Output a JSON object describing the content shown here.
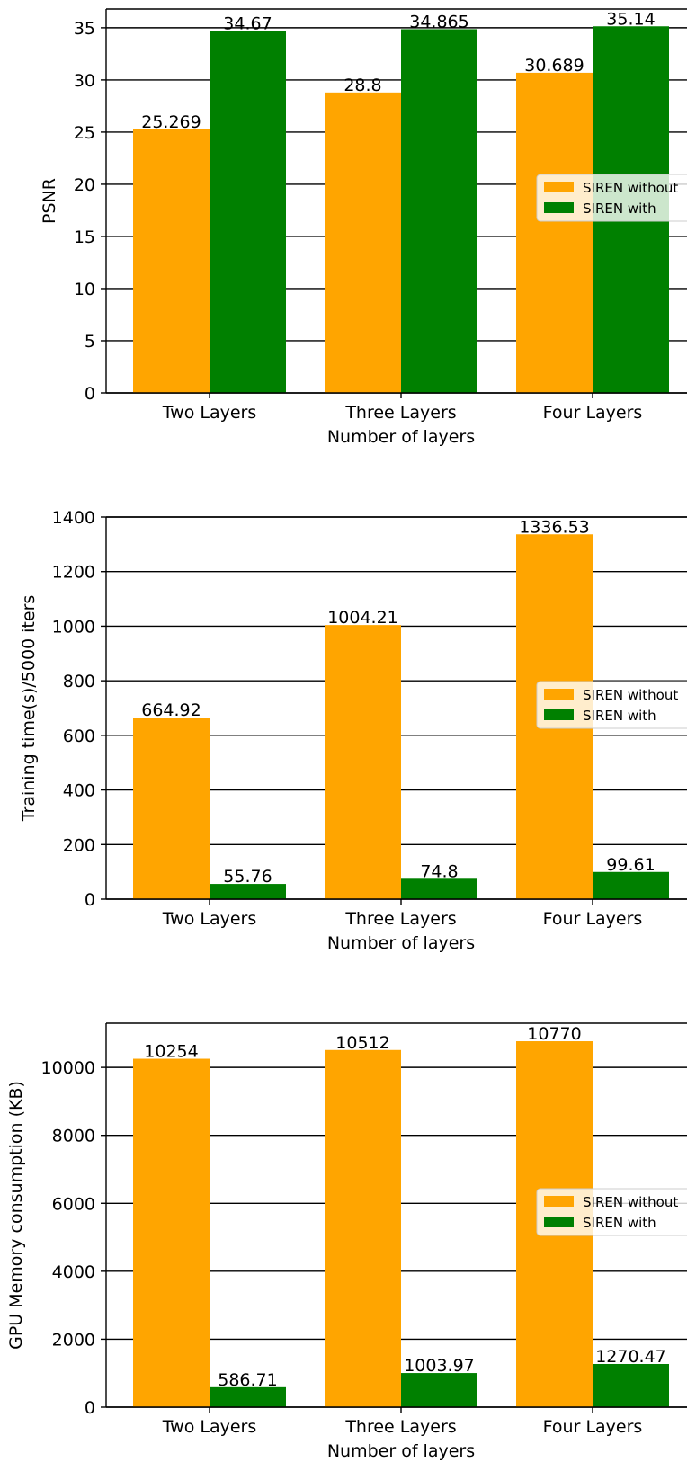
{
  "chart_data": [
    {
      "type": "bar",
      "categories": [
        "Two Layers",
        "Three Layers",
        "Four Layers"
      ],
      "series": [
        {
          "name": "SIREN without",
          "values": [
            25.269,
            28.8,
            30.689
          ],
          "labels": [
            "25.269",
            "28.8",
            "30.689"
          ]
        },
        {
          "name": "SIREN with",
          "values": [
            34.67,
            34.865,
            35.14
          ],
          "labels": [
            "34.67",
            "34.865",
            "35.14"
          ]
        }
      ],
      "xlabel": "Number of layers",
      "ylabel": "PSNR",
      "ylim": [
        0,
        36.8
      ],
      "yticks": [
        0,
        5,
        10,
        15,
        20,
        25,
        30,
        35
      ],
      "grid": true,
      "legend": "right"
    },
    {
      "type": "bar",
      "categories": [
        "Two Layers",
        "Three Layers",
        "Four Layers"
      ],
      "series": [
        {
          "name": "SIREN without",
          "values": [
            664.92,
            1004.21,
            1336.53
          ],
          "labels": [
            "664.92",
            "1004.21",
            "1336.53"
          ]
        },
        {
          "name": "SIREN with",
          "values": [
            55.76,
            74.8,
            99.61
          ],
          "labels": [
            "55.76",
            "74.8",
            "99.61"
          ]
        }
      ],
      "xlabel": "Number of layers",
      "ylabel": "Training time(s)/5000 iters",
      "ylim": [
        0,
        1400
      ],
      "yticks": [
        0,
        200,
        400,
        600,
        800,
        1000,
        1200,
        1400
      ],
      "grid": true,
      "legend": "right"
    },
    {
      "type": "bar",
      "categories": [
        "Two Layers",
        "Three Layers",
        "Four Layers"
      ],
      "series": [
        {
          "name": "SIREN without",
          "values": [
            10254,
            10512,
            10770
          ],
          "labels": [
            "10254",
            "10512",
            "10770"
          ]
        },
        {
          "name": "SIREN with",
          "values": [
            586.71,
            1003.97,
            1270.47
          ],
          "labels": [
            "586.71",
            "1003.97",
            "1270.47"
          ]
        }
      ],
      "xlabel": "Number of layers",
      "ylabel": "GPU Memory consumption (KB)",
      "ylim": [
        0,
        11300
      ],
      "yticks": [
        0,
        2000,
        4000,
        6000,
        8000,
        10000
      ],
      "grid": true,
      "legend": "right"
    }
  ],
  "colors": {
    "without": "#FFA500",
    "with": "#008000",
    "grid": "#000000"
  }
}
